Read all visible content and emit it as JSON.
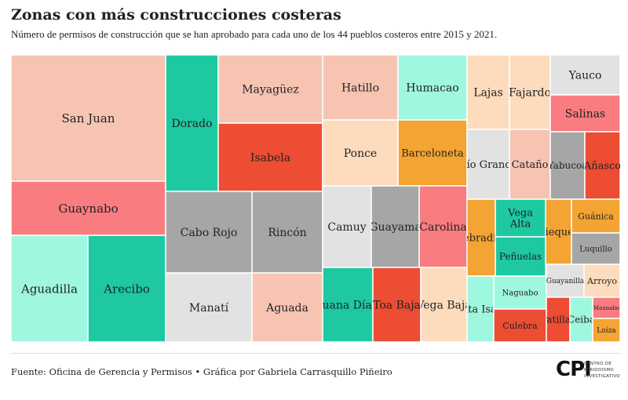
{
  "title": "Zonas con más construcciones costeras",
  "subtitle": "Número de permisos de construcción que se han aprobado para cada uno de los 44 pueblos costeros entre 2015 y 2021.",
  "source": "Fuente: Oficina de Gerencia y Permisos • Gráfica por Gabriela Carrasquillo Piñeiro",
  "logo": {
    "mark": "CPI",
    "line1": "CENTRO DE",
    "line2": "PERIODISMO",
    "line3": "INVESTIGATIVO"
  },
  "colors": {
    "salmon": "#f7c4b2",
    "pink": "#f97c80",
    "mint": "#9ff7df",
    "teal": "#1ec9a1",
    "gray": "#a6a6a6",
    "lightgray": "#e2e2e2",
    "red": "#ec4d33",
    "peach": "#fddcbe",
    "orange": "#f4a433",
    "border": "#ffffff"
  },
  "chart_data": {
    "type": "treemap",
    "items": [
      {
        "name": "San Juan",
        "value": 1450,
        "color": "salmon"
      },
      {
        "name": "Guaynabo",
        "value": 460,
        "color": "pink"
      },
      {
        "name": "Aguadilla",
        "value": 560,
        "color": "mint"
      },
      {
        "name": "Arecibo",
        "value": 510,
        "color": "teal"
      },
      {
        "name": "Dorado",
        "value": 380,
        "color": "teal"
      },
      {
        "name": "Mayagüez",
        "value": 365,
        "color": "salmon"
      },
      {
        "name": "Isabela",
        "value": 340,
        "color": "red"
      },
      {
        "name": "Cabo Rojo",
        "value": 390,
        "color": "gray"
      },
      {
        "name": "Rincón",
        "value": 325,
        "color": "gray"
      },
      {
        "name": "Manatí",
        "value": 305,
        "color": "lightgray"
      },
      {
        "name": "Aguada",
        "value": 320,
        "color": "salmon"
      },
      {
        "name": "Hatillo",
        "value": 220,
        "color": "salmon"
      },
      {
        "name": "Humacao",
        "value": 210,
        "color": "mint"
      },
      {
        "name": "Ponce",
        "value": 225,
        "color": "peach"
      },
      {
        "name": "Barceloneta",
        "value": 210,
        "color": "orange"
      },
      {
        "name": "Camuy",
        "value": 190,
        "color": "lightgray"
      },
      {
        "name": "Guayama",
        "value": 185,
        "color": "gray"
      },
      {
        "name": "Carolina",
        "value": 190,
        "color": "pink"
      },
      {
        "name": "Juana Díaz",
        "value": 185,
        "color": "teal"
      },
      {
        "name": "Toa Baja",
        "value": 190,
        "color": "red"
      },
      {
        "name": "Vega Baja",
        "value": 200,
        "color": "peach"
      },
      {
        "name": "Lajas",
        "value": 130,
        "color": "peach"
      },
      {
        "name": "Fajardo",
        "value": 130,
        "color": "peach"
      },
      {
        "name": "Yauco",
        "value": 100,
        "color": "lightgray"
      },
      {
        "name": "Salinas",
        "value": 100,
        "color": "pink"
      },
      {
        "name": "Río Grande",
        "value": 135,
        "color": "lightgray"
      },
      {
        "name": "Cataño",
        "value": 130,
        "color": "salmon"
      },
      {
        "name": "Yabucoa",
        "value": 80,
        "color": "gray"
      },
      {
        "name": "Añasco",
        "value": 80,
        "color": "red"
      },
      {
        "name": "Quebradillas",
        "value": 95,
        "color": "orange"
      },
      {
        "name": "Vega Alta",
        "value": 70,
        "color": "teal"
      },
      {
        "name": "Peñuelas",
        "value": 70,
        "color": "teal"
      },
      {
        "name": "Vieques",
        "value": 55,
        "color": "orange"
      },
      {
        "name": "Guánica",
        "value": 50,
        "color": "orange"
      },
      {
        "name": "Luquillo",
        "value": 45,
        "color": "gray"
      },
      {
        "name": "Santa Isabel",
        "value": 75,
        "color": "mint"
      },
      {
        "name": "Naguabo",
        "value": 45,
        "color": "mint"
      },
      {
        "name": "Culebra",
        "value": 45,
        "color": "red"
      },
      {
        "name": "Guayanilla",
        "value": 30,
        "color": "lightgray"
      },
      {
        "name": "Arroyo",
        "value": 30,
        "color": "peach"
      },
      {
        "name": "Patillas",
        "value": 30,
        "color": "red"
      },
      {
        "name": "Ceiba",
        "value": 25,
        "color": "mint"
      },
      {
        "name": "Maunabo",
        "value": 18,
        "color": "pink"
      },
      {
        "name": "Loíza",
        "value": 18,
        "color": "orange"
      }
    ]
  }
}
